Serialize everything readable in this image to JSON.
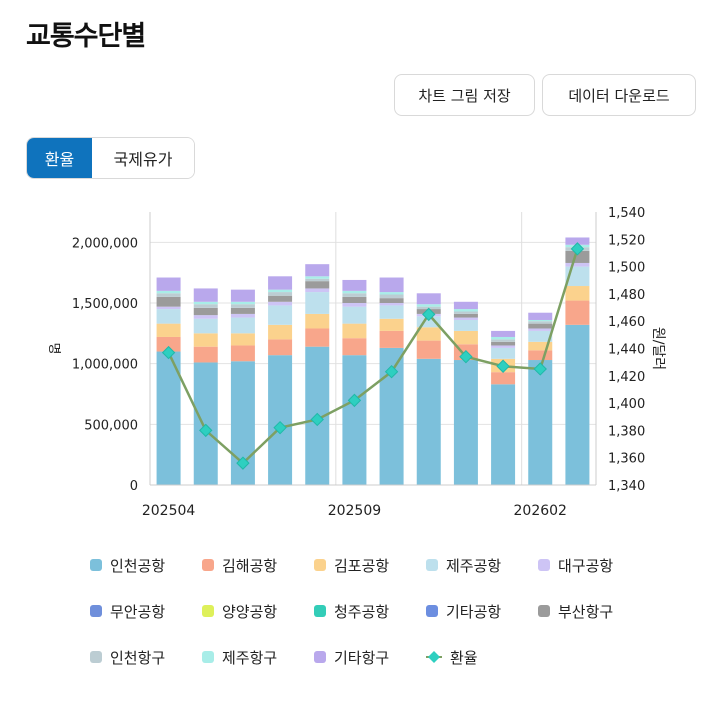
{
  "page": {
    "title": "교통수단별",
    "buttons": {
      "save_chart": "차트 그림 저장",
      "download_data": "데이터 다운로드"
    },
    "toggle": {
      "options": [
        "환율",
        "국제유가"
      ],
      "selected": "환율"
    }
  },
  "chart_data": {
    "type": "bar",
    "stacked": true,
    "categories": [
      "202504",
      "202505",
      "202506",
      "202507",
      "202508",
      "202509",
      "202510",
      "202511",
      "202512",
      "202601",
      "202602",
      "202603"
    ],
    "x_tick_labels": [
      "202504",
      "202509",
      "202602"
    ],
    "ylabel_left": "명",
    "ylabel_right": "원/달러",
    "ylim_left": [
      0,
      2250000
    ],
    "yticks_left": [
      "0",
      "500,000",
      "1,000,000",
      "1,500,000",
      "2,000,000"
    ],
    "ylim_right": [
      1340,
      1540
    ],
    "yticks_right": [
      "1,340",
      "1,360",
      "1,380",
      "1,400",
      "1,420",
      "1,440",
      "1,460",
      "1,480",
      "1,500",
      "1,520",
      "1,540"
    ],
    "grid": true,
    "legend_position": "bottom",
    "series": [
      {
        "name": "인천공항",
        "color": "#7cc0db",
        "values": [
          1100000,
          1010000,
          1020000,
          1070000,
          1140000,
          1070000,
          1130000,
          1040000,
          1030000,
          830000,
          1030000,
          1320000
        ]
      },
      {
        "name": "김해공항",
        "color": "#f8a68b",
        "values": [
          120000,
          130000,
          130000,
          130000,
          150000,
          140000,
          140000,
          150000,
          130000,
          100000,
          80000,
          200000
        ]
      },
      {
        "name": "김포공항",
        "color": "#fbd28d",
        "values": [
          110000,
          110000,
          100000,
          120000,
          120000,
          120000,
          100000,
          110000,
          110000,
          110000,
          70000,
          120000
        ]
      },
      {
        "name": "제주공항",
        "color": "#bde0ed",
        "values": [
          120000,
          120000,
          130000,
          160000,
          180000,
          140000,
          110000,
          90000,
          90000,
          90000,
          90000,
          160000
        ]
      },
      {
        "name": "대구공항",
        "color": "#cdc4f5",
        "values": [
          20000,
          30000,
          30000,
          30000,
          30000,
          30000,
          20000,
          20000,
          20000,
          20000,
          20000,
          30000
        ]
      },
      {
        "name": "무안공항",
        "color": "#6f8fdb",
        "values": [
          0,
          0,
          0,
          0,
          0,
          0,
          0,
          0,
          0,
          0,
          0,
          0
        ]
      },
      {
        "name": "양양공항",
        "color": "#def05a",
        "values": [
          0,
          0,
          0,
          0,
          0,
          0,
          0,
          0,
          0,
          0,
          0,
          0
        ]
      },
      {
        "name": "청주공항",
        "color": "#33cdb8",
        "values": [
          0,
          0,
          0,
          0,
          0,
          0,
          0,
          0,
          0,
          0,
          0,
          0
        ]
      },
      {
        "name": "기타공항",
        "color": "#6c8ee0",
        "values": [
          0,
          0,
          0,
          0,
          0,
          0,
          0,
          0,
          0,
          0,
          0,
          0
        ]
      },
      {
        "name": "부산항구",
        "color": "#9b9b9b",
        "values": [
          80000,
          60000,
          50000,
          50000,
          60000,
          50000,
          40000,
          40000,
          30000,
          30000,
          40000,
          100000
        ]
      },
      {
        "name": "인천항구",
        "color": "#bccdd3",
        "values": [
          30000,
          30000,
          30000,
          30000,
          20000,
          30000,
          30000,
          20000,
          20000,
          20000,
          20000,
          30000
        ]
      },
      {
        "name": "제주항구",
        "color": "#a8ede8",
        "values": [
          20000,
          20000,
          20000,
          20000,
          20000,
          20000,
          20000,
          20000,
          20000,
          20000,
          10000,
          20000
        ]
      },
      {
        "name": "기타항구",
        "color": "#b9a8ec",
        "values": [
          110000,
          110000,
          100000,
          110000,
          100000,
          90000,
          120000,
          90000,
          60000,
          50000,
          60000,
          60000
        ]
      }
    ],
    "line_series": {
      "name": "환율",
      "color": "#7da063",
      "marker_color": "#2ecfc0",
      "axis": "right",
      "values": [
        1437,
        1380,
        1356,
        1382,
        1388,
        1402,
        1423,
        1465,
        1434,
        1427,
        1425,
        1513
      ]
    }
  }
}
